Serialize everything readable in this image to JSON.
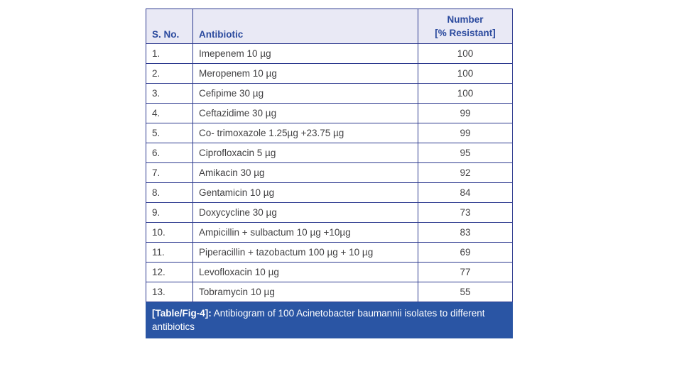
{
  "table": {
    "header": {
      "sno": "S. No.",
      "antibiotic": "Antibiotic",
      "number_line1": "Number",
      "number_line2": "[% Resistant]"
    },
    "rows": [
      {
        "sno": "1.",
        "antibiotic": "Imepenem 10 µg",
        "value": "100"
      },
      {
        "sno": "2.",
        "antibiotic": "Meropenem 10 µg",
        "value": "100"
      },
      {
        "sno": "3.",
        "antibiotic": "Cefipime 30 µg",
        "value": "100"
      },
      {
        "sno": "4.",
        "antibiotic": "Ceftazidime 30 µg",
        "value": "99"
      },
      {
        "sno": "5.",
        "antibiotic": "Co- trimoxazole 1.25µg +23.75 µg",
        "value": "99"
      },
      {
        "sno": "6.",
        "antibiotic": "Ciprofloxacin 5 µg",
        "value": "95"
      },
      {
        "sno": "7.",
        "antibiotic": "Amikacin 30 µg",
        "value": "92"
      },
      {
        "sno": "8.",
        "antibiotic": "Gentamicin 10 µg",
        "value": "84"
      },
      {
        "sno": "9.",
        "antibiotic": "Doxycycline 30 µg",
        "value": "73"
      },
      {
        "sno": "10.",
        "antibiotic": "Ampicillin + sulbactum 10 µg +10µg",
        "value": "83"
      },
      {
        "sno": "11.",
        "antibiotic": "Piperacillin + tazobactum 100 µg + 10 µg",
        "value": "69"
      },
      {
        "sno": "12.",
        "antibiotic": "Levofloxacin 10 µg",
        "value": "77"
      },
      {
        "sno": "13.",
        "antibiotic": "Tobramycin 10 µg",
        "value": "55"
      }
    ],
    "caption_label": "[Table/Fig-4]:",
    "caption_text": " Antibiogram of 100 Acinetobacter baumannii isolates to different antibiotics"
  },
  "colors": {
    "page_bg": "#ffffff",
    "header_bg": "#e9e9f5",
    "header_text": "#2b4a9e",
    "border": "#2d3a8f",
    "body_text": "#414042",
    "caption_bg": "#2a55a4",
    "caption_text": "#ffffff"
  }
}
